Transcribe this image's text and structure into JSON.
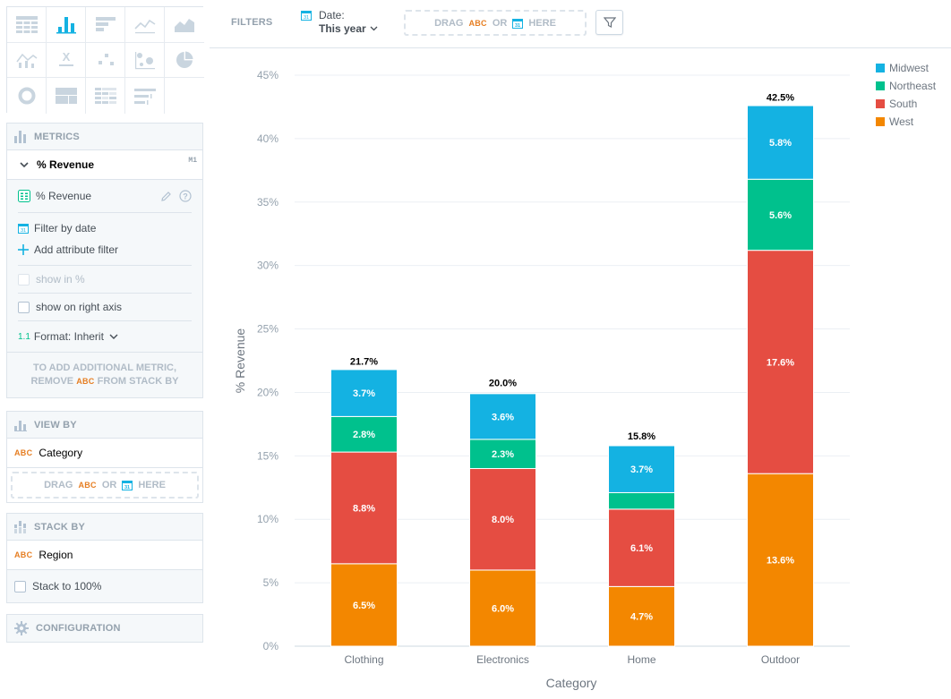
{
  "sidebar": {
    "vis_types": [
      {
        "icon": "table-icon",
        "active": false
      },
      {
        "icon": "column-chart-icon",
        "active": true
      },
      {
        "icon": "bar-chart-icon",
        "active": false
      },
      {
        "icon": "line-chart-icon",
        "active": false
      },
      {
        "icon": "area-chart-icon",
        "active": false
      },
      {
        "icon": "combo-chart-icon",
        "active": false
      },
      {
        "icon": "headline-icon",
        "active": false
      },
      {
        "icon": "scatter-plot-icon",
        "active": false
      },
      {
        "icon": "bubble-chart-icon",
        "active": false
      },
      {
        "icon": "pie-chart-icon",
        "active": false
      },
      {
        "icon": "donut-chart-icon",
        "active": false
      },
      {
        "icon": "treemap-icon",
        "active": false
      },
      {
        "icon": "heatmap-icon",
        "active": false
      },
      {
        "icon": "bullet-chart-icon",
        "active": false
      },
      {
        "icon": "empty-slot",
        "active": false
      }
    ],
    "metrics": {
      "title": "Metrics",
      "metric_name": "% Revenue",
      "metric_tag": "M1",
      "measure_name": "% Revenue",
      "filter_by_date": "Filter by date",
      "add_attribute_filter": "Add attribute filter",
      "show_in_percent": "show in %",
      "show_on_right_axis": "show on right axis",
      "format_prefix": "1.1",
      "format_label": "Format: Inherit",
      "note_line1": "To add additional metric,",
      "note_pre": "remove",
      "note_abc": "ABC",
      "note_post": "from stack by"
    },
    "view_by": {
      "title": "View by",
      "abc": "ABC",
      "attribute": "Category",
      "drop_drag": "Drag",
      "drop_abc": "ABC",
      "drop_or": "or",
      "drop_here": "here"
    },
    "stack_by": {
      "title": "Stack by",
      "abc": "ABC",
      "attribute": "Region",
      "stack_to_100": "Stack to 100%"
    },
    "configuration": {
      "title": "Configuration"
    }
  },
  "topbar": {
    "filters_label": "Filters",
    "date_label": "Date:",
    "date_value": "This year",
    "drop_drag": "Drag",
    "drop_abc": "ABC",
    "drop_or": "or",
    "drop_here": "here"
  },
  "colors": {
    "Midwest": "#14b2e2",
    "Northeast": "#00c18d",
    "South": "#e54d42",
    "West": "#f38700",
    "accent": "#14b2e2",
    "abc": "#e67e22"
  },
  "chart_data": {
    "type": "bar",
    "stacked": true,
    "categories": [
      "Clothing",
      "Electronics",
      "Home",
      "Outdoor"
    ],
    "series": [
      {
        "name": "West",
        "values": [
          6.5,
          6.0,
          4.7,
          13.6
        ],
        "labels": [
          "6.5%",
          "6.0%",
          "4.7%",
          "13.6%"
        ]
      },
      {
        "name": "South",
        "values": [
          8.8,
          8.0,
          6.1,
          17.6
        ],
        "labels": [
          "8.8%",
          "8.0%",
          "6.1%",
          "17.6%"
        ]
      },
      {
        "name": "Northeast",
        "values": [
          2.8,
          2.3,
          1.3,
          5.6
        ],
        "labels": [
          "2.8%",
          "2.3%",
          "",
          "5.6%"
        ]
      },
      {
        "name": "Midwest",
        "values": [
          3.7,
          3.6,
          3.7,
          5.8
        ],
        "labels": [
          "3.7%",
          "3.6%",
          "3.7%",
          "5.8%"
        ]
      }
    ],
    "totals": [
      "21.7%",
      "20.0%",
      "15.8%",
      "42.5%"
    ],
    "total_values": [
      21.7,
      20.0,
      15.8,
      42.5
    ],
    "ylim": [
      0,
      45
    ],
    "yticks": [
      0,
      5,
      10,
      15,
      20,
      25,
      30,
      35,
      40,
      45
    ],
    "ytick_labels": [
      "0%",
      "5%",
      "10%",
      "15%",
      "20%",
      "25%",
      "30%",
      "35%",
      "40%",
      "45%"
    ],
    "xlabel": "Category",
    "ylabel": "% Revenue",
    "legend": [
      "Midwest",
      "Northeast",
      "South",
      "West"
    ],
    "legend_position": "top-right",
    "grid": true
  }
}
